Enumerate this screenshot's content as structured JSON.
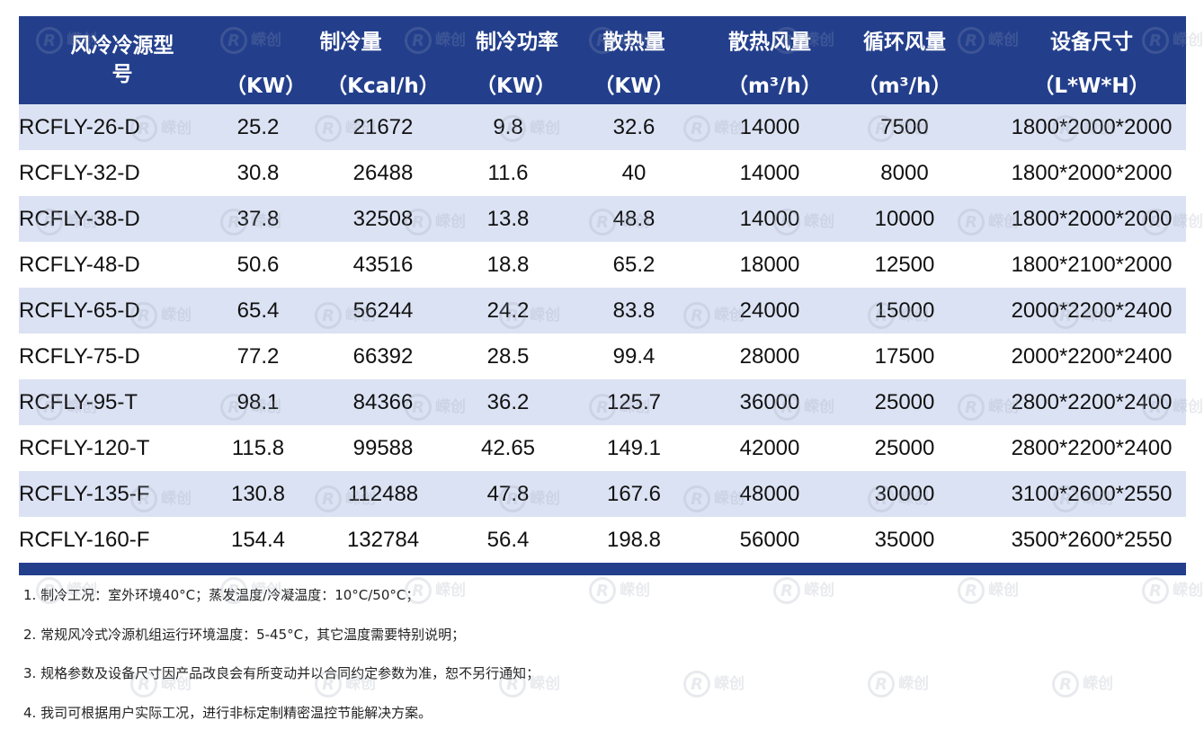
{
  "header": {
    "model": "风冷冷源型号",
    "cooling_capacity": "制冷量",
    "cooling_power": "制冷功率",
    "heat_dissipation": "散热量",
    "heat_airflow": "散热风量",
    "circ_airflow": "循环风量",
    "dimensions": "设备尺寸",
    "units": [
      "（KW）",
      "（Kcal/h）",
      "（KW）",
      "（KW）",
      "（m³/h）",
      "（m³/h）",
      "（L*W*H）"
    ]
  },
  "rows": [
    [
      "RCFLY-26-D",
      "25.2",
      "21672",
      "9.8",
      "32.6",
      "14000",
      "7500",
      "1800*2000*2000"
    ],
    [
      "RCFLY-32-D",
      "30.8",
      "26488",
      "11.6",
      "40",
      "14000",
      "8000",
      "1800*2000*2000"
    ],
    [
      "RCFLY-38-D",
      "37.8",
      "32508",
      "13.8",
      "48.8",
      "14000",
      "10000",
      "1800*2000*2000"
    ],
    [
      "RCFLY-48-D",
      "50.6",
      "43516",
      "18.8",
      "65.2",
      "18000",
      "12500",
      "1800*2100*2000"
    ],
    [
      "RCFLY-65-D",
      "65.4",
      "56244",
      "24.2",
      "83.8",
      "24000",
      "15000",
      "2000*2200*2400"
    ],
    [
      "RCFLY-75-D",
      "77.2",
      "66392",
      "28.5",
      "99.4",
      "28000",
      "17500",
      "2000*2200*2400"
    ],
    [
      "RCFLY-95-T",
      "98.1",
      "84366",
      "36.2",
      "125.7",
      "36000",
      "25000",
      "2800*2200*2400"
    ],
    [
      "RCFLY-120-T",
      "115.8",
      "99588",
      "42.65",
      "149.1",
      "42000",
      "25000",
      "2800*2200*2400"
    ],
    [
      "RCFLY-135-F",
      "130.8",
      "112488",
      "47.8",
      "167.6",
      "48000",
      "30000",
      "3100*2600*2550"
    ],
    [
      "RCFLY-160-F",
      "154.4",
      "132784",
      "56.4",
      "198.8",
      "56000",
      "35000",
      "3500*2600*2550"
    ]
  ],
  "notes": [
    "1. 制冷工况：室外环境40°C；蒸发温度/冷凝温度：10°C/50°C；",
    "2. 常规风冷式冷源机组运行环境温度：5-45°C，其它温度需要特别说明；",
    "3. 规格参数及设备尺寸因产品改良会有所变动并以合同约定参数为准，恕不另行通知；",
    "4. 我司可根据用户实际工况，进行非标定制精密温控节能解决方案。"
  ],
  "watermark": {
    "mark": "R",
    "text": "嵘创"
  },
  "colors": {
    "header_bg": "#233f8c",
    "row_alt_bg": "#dbe2f3"
  }
}
